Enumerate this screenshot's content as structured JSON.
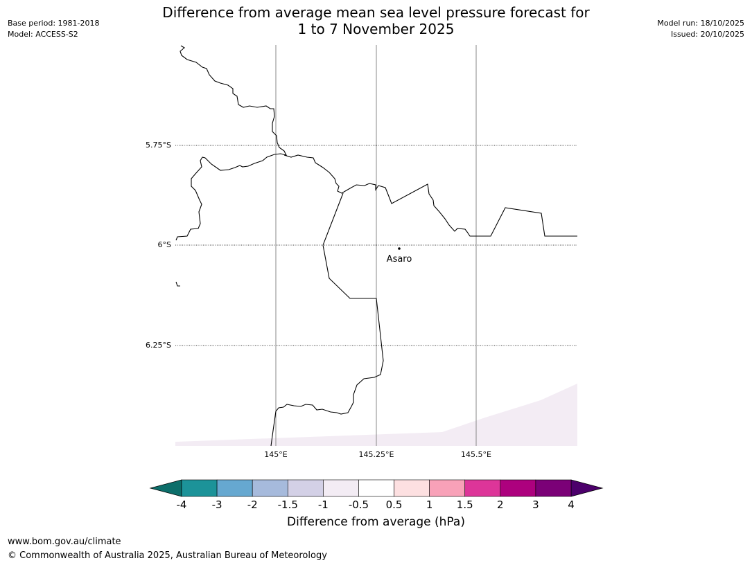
{
  "title": {
    "line1": "Difference from average mean sea level pressure forecast for",
    "line2": "1 to 7 November 2025"
  },
  "meta_left": {
    "base_period": "Base period: 1981-2018",
    "model": "Model: ACCESS-S2"
  },
  "meta_right": {
    "model_run": "Model run: 18/10/2025",
    "issued": "Issued: 20/10/2025"
  },
  "map": {
    "lat_labels": [
      "5.75°S",
      "6°S",
      "6.25°S"
    ],
    "lon_labels": [
      "145°E",
      "145.25°E",
      "145.5°E"
    ],
    "place": {
      "name": "Asaro"
    }
  },
  "colorbar": {
    "title": "Difference from average (hPa)",
    "tick_labels": [
      "-4",
      "-3",
      "-2",
      "-1.5",
      "-1",
      "-0.5",
      "0.5",
      "1",
      "1.5",
      "2",
      "3",
      "4"
    ],
    "colors": [
      "#0c6e6a",
      "#1c9399",
      "#66a8d0",
      "#a6badc",
      "#d3d0e6",
      "#f3ecf4",
      "#ffffff",
      "#fde0e1",
      "#f8a1b8",
      "#dd3599",
      "#ad017e",
      "#7b0177",
      "#4c006b"
    ],
    "shading_color": "#f3ecf4"
  },
  "footer": {
    "url": "www.bom.gov.au/climate",
    "copyright": "© Commonwealth of Australia 2025, Australian Bureau of Meteorology"
  }
}
